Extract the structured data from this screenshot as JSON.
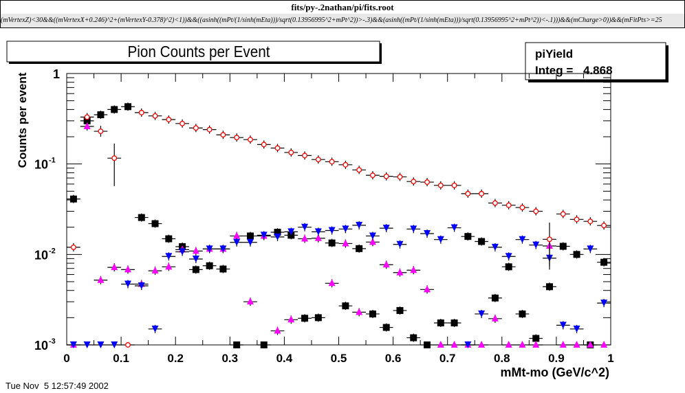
{
  "window": {
    "title": "fits/py-.2nathan/pi/fits.root",
    "cut_expression": "(mVertexZ)<30&&((mVertexX+0.246)^2+(mVertexY-0.378)^2)<1))&&((asinh((mPt/(1/sinh(mEta)))/sqrt(0.13956995^2+mPt^2))>-.3)&&(asinh((mPt/(1/sinh(mEta)))/sqrt(0.13956995^2+mPt^2))<-.1)))&&(mCharge>0))&&(mFitPts>=25"
  },
  "stats_box": {
    "name": "piYield",
    "integ_label": "Integ = ",
    "integ_value": "4.868"
  },
  "timestamp": "Tue Nov  5 12:57:49 2002",
  "chart_data": {
    "type": "scatter",
    "title": "Pion Counts per Event",
    "xlabel": "mMt-mo (GeV/c^2)",
    "ylabel": "Counts per event",
    "xlim": [
      0,
      1
    ],
    "ylim": [
      0.001,
      1
    ],
    "yscale": "log",
    "grid": false,
    "x_ticks": [
      "0",
      "0.1",
      "0.2",
      "0.3",
      "0.4",
      "0.5",
      "0.6",
      "0.7",
      "0.8",
      "0.9",
      "1"
    ],
    "y_ticks": [
      {
        "value": 1,
        "label": "1",
        "exp": ""
      },
      {
        "value": 0.1,
        "label": "10",
        "exp": "-1"
      },
      {
        "value": 0.01,
        "label": "10",
        "exp": "-2"
      },
      {
        "value": 0.001,
        "label": "10",
        "exp": "-3"
      }
    ],
    "bin_width": 0.025,
    "x": [
      0.0125,
      0.0375,
      0.0625,
      0.0875,
      0.1125,
      0.1375,
      0.1625,
      0.1875,
      0.2125,
      0.2375,
      0.2625,
      0.2875,
      0.3125,
      0.3375,
      0.3625,
      0.3875,
      0.4125,
      0.4375,
      0.4625,
      0.4875,
      0.5125,
      0.5375,
      0.5625,
      0.5875,
      0.6125,
      0.6375,
      0.6625,
      0.6875,
      0.7125,
      0.7375,
      0.7625,
      0.7875,
      0.8125,
      0.8375,
      0.8625,
      0.8875,
      0.9125,
      0.9375,
      0.9625,
      0.9875
    ],
    "series": [
      {
        "name": "black-squares",
        "marker": "square",
        "color": "#000000",
        "values": [
          0.041,
          0.3,
          0.35,
          0.4,
          0.43,
          0.0256,
          0.0219,
          0.0149,
          0.0122,
          0.0068,
          0.0075,
          0.0069,
          0.001,
          0.016,
          0.001,
          0.0176,
          0.0163,
          0.00197,
          0.002,
          0.0134,
          0.0027,
          0.0116,
          0.0022,
          0.00156,
          0.0024,
          0.0012,
          0.001,
          0.00175,
          0.00175,
          0.0158,
          0.0139,
          0.0033,
          0.0073,
          0.0022,
          0.00118,
          0.0044,
          0.0123,
          0.01,
          0.001,
          0.0082
        ]
      },
      {
        "name": "magenta-triangles-up",
        "marker": "triangle-up",
        "color": "#ff00ff",
        "values": [
          0.001,
          0.26,
          0.0052,
          0.0072,
          0.0068,
          0.0047,
          0.0066,
          0.0073,
          0.0113,
          0.0109,
          0.0115,
          0.0115,
          0.016,
          0.003,
          0.016,
          0.00143,
          0.0019,
          0.0149,
          0.0151,
          0.0048,
          0.0132,
          0.0023,
          0.0137,
          0.0077,
          0.0063,
          0.0067,
          0.0041,
          0.001,
          0.001,
          0.001,
          0.001,
          0.00195,
          0.001,
          0.001,
          0.001,
          0.0124,
          0.001,
          0.001,
          0.001,
          0.001
        ]
      },
      {
        "name": "blue-triangles-down",
        "marker": "triangle-down",
        "color": "#0000ff",
        "values": [
          0.001,
          0.001,
          0.001,
          0.001,
          0.0047,
          0.0045,
          0.0015,
          0.0095,
          0.0107,
          0.0089,
          0.0115,
          0.0115,
          0.0136,
          0.0136,
          0.0163,
          0.0156,
          0.0178,
          0.02,
          0.0178,
          0.0184,
          0.0191,
          0.021,
          0.016,
          0.0195,
          0.0129,
          0.0191,
          0.017,
          0.0146,
          0.0197,
          0.001,
          0.0022,
          0.012,
          0.0095,
          0.0146,
          0.0127,
          0.0091,
          0.00165,
          0.0015,
          0.0115,
          0.0029
        ]
      },
      {
        "name": "red-open-circles",
        "marker": "open-circle",
        "color": "#ff0000",
        "values": [
          0.012,
          0.33,
          0.23,
          0.116,
          0.001,
          0.37,
          0.34,
          0.31,
          0.28,
          0.25,
          0.24,
          0.21,
          0.196,
          0.186,
          0.164,
          0.15,
          0.134,
          0.124,
          0.112,
          0.106,
          0.098,
          0.086,
          0.075,
          0.073,
          0.072,
          0.064,
          0.063,
          0.058,
          0.058,
          0.047,
          0.047,
          0.037,
          0.035,
          0.033,
          0.03,
          0.0147,
          0.028,
          0.0244,
          0.0232,
          0.0209
        ]
      }
    ],
    "large_errors": [
      {
        "series": "red-open-circles",
        "x": 0.0875,
        "low": 0.057,
        "high": 0.168
      },
      {
        "series": "red-open-circles",
        "x": 0.0625,
        "low": 0.2,
        "high": 0.265
      },
      {
        "series": "red-open-circles",
        "x": 0.8875,
        "low": 0.0074,
        "high": 0.0225
      },
      {
        "series": "blue-triangles-down",
        "x": 0.8875,
        "low": 0.0068,
        "high": 0.012
      }
    ]
  }
}
